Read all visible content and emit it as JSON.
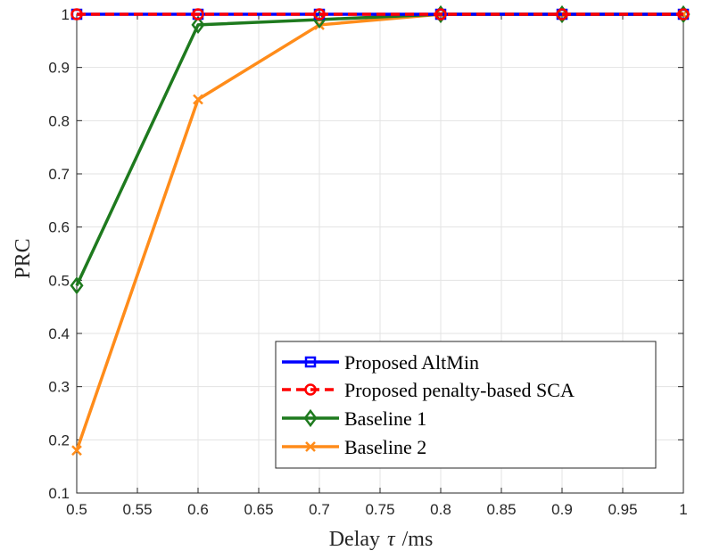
{
  "chart_data": {
    "type": "line",
    "xlabel": "Delay",
    "xlabel_symbol": "τ",
    "xlabel_unit": "/ms",
    "ylabel": "PRC",
    "xlim": [
      0.5,
      1
    ],
    "ylim": [
      0.1,
      1
    ],
    "grid": true,
    "legend_position": "bottom-right",
    "x_ticks": [
      "0.5",
      "0.55",
      "0.6",
      "0.65",
      "0.7",
      "0.75",
      "0.8",
      "0.85",
      "0.9",
      "0.95",
      "1"
    ],
    "y_ticks": [
      "0.1",
      "0.2",
      "0.3",
      "0.4",
      "0.5",
      "0.6",
      "0.7",
      "0.8",
      "0.9",
      "1"
    ],
    "series": [
      {
        "name": "Proposed AltMin",
        "x": [
          0.5,
          0.6,
          0.7,
          0.8,
          0.9,
          1.0
        ],
        "values": [
          1,
          1,
          1,
          1,
          1,
          1
        ],
        "color": "#0000ff",
        "marker": "square",
        "dash": "solid"
      },
      {
        "name": "Proposed penalty-based SCA",
        "x": [
          0.5,
          0.6,
          0.7,
          0.8,
          0.9,
          1.0
        ],
        "values": [
          1,
          1,
          1,
          1,
          1,
          1
        ],
        "color": "#ff0000",
        "marker": "circle",
        "dash": "dashed"
      },
      {
        "name": "Baseline 1",
        "x": [
          0.5,
          0.6,
          0.7,
          0.8,
          0.9,
          1.0
        ],
        "values": [
          0.49,
          0.98,
          0.99,
          1,
          1,
          1
        ],
        "color": "#1e7a1e",
        "marker": "diamond",
        "dash": "solid"
      },
      {
        "name": "Baseline 2",
        "x": [
          0.5,
          0.6,
          0.7,
          0.8,
          0.9,
          1.0
        ],
        "values": [
          0.18,
          0.84,
          0.98,
          1,
          1,
          1
        ],
        "color": "#ff8c1a",
        "marker": "x",
        "dash": "solid"
      }
    ]
  }
}
